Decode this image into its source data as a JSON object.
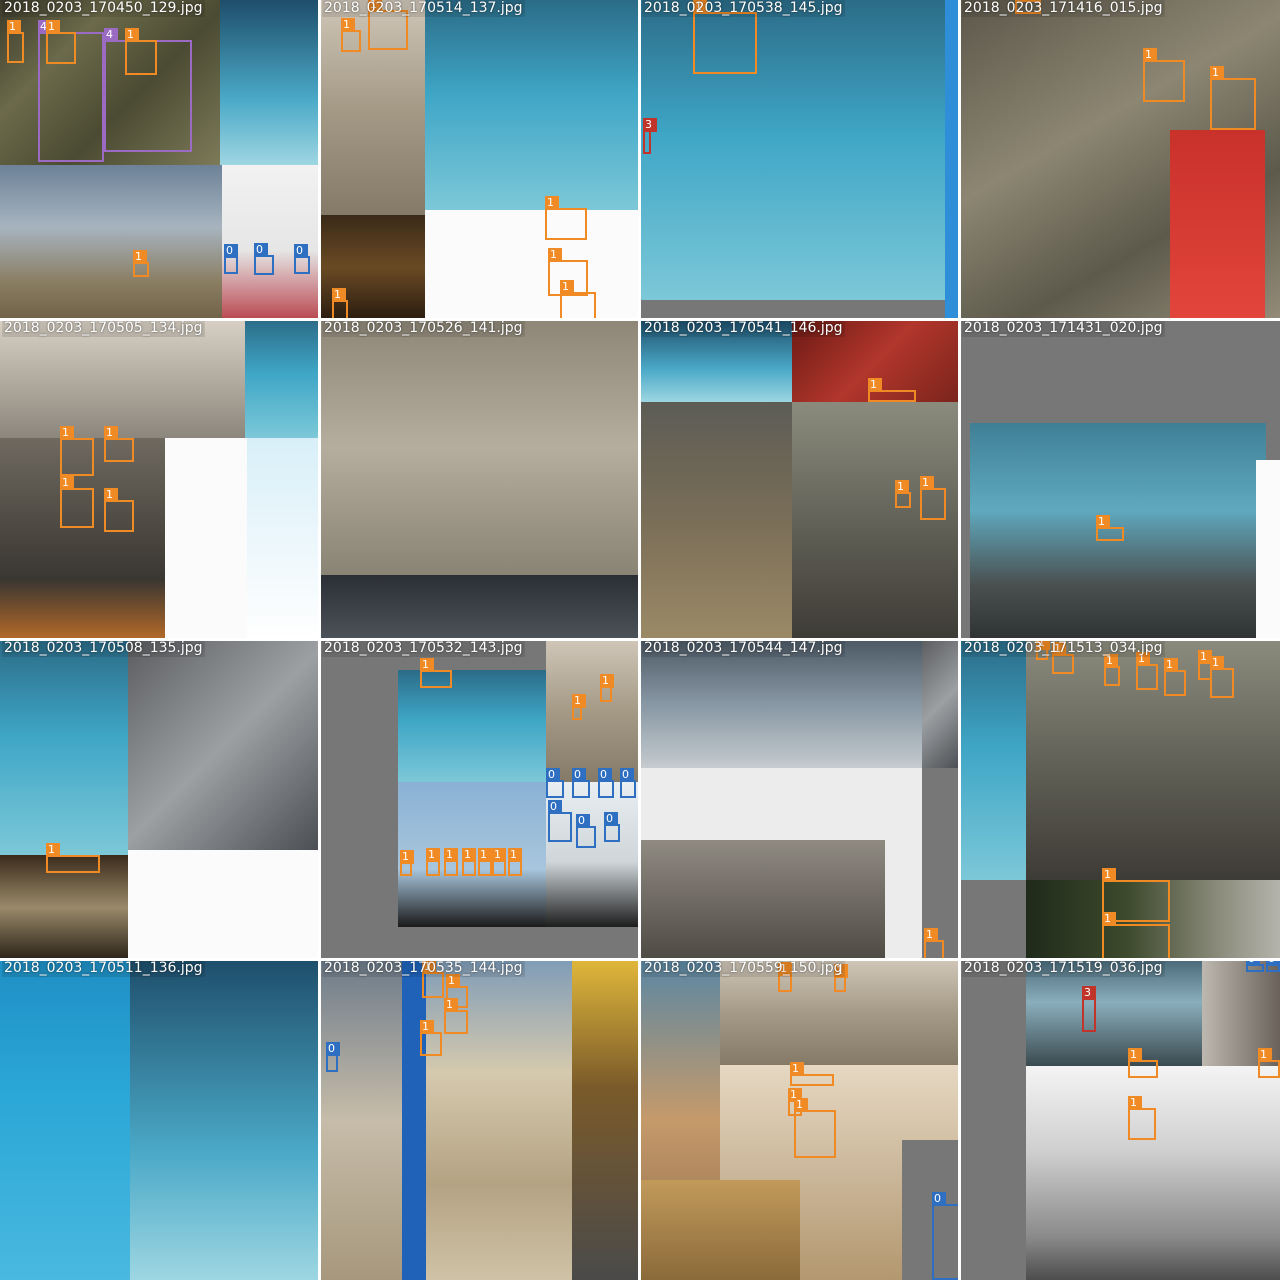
{
  "tiles": [
    {
      "filename": "2018_0203_170450_129.jpg",
      "row": 0,
      "col": 0
    },
    {
      "filename": "2018_0203_170514_137.jpg",
      "row": 0,
      "col": 1
    },
    {
      "filename": "2018_0203_170538_145.jpg",
      "row": 0,
      "col": 2
    },
    {
      "filename": "2018_0203_171416_015.jpg",
      "row": 0,
      "col": 3
    },
    {
      "filename": "2018_0203_170505_134.jpg",
      "row": 1,
      "col": 0
    },
    {
      "filename": "2018_0203_170526_141.jpg",
      "row": 1,
      "col": 1
    },
    {
      "filename": "2018_0203_170541_146.jpg",
      "row": 1,
      "col": 2
    },
    {
      "filename": "2018_0203_171431_020.jpg",
      "row": 1,
      "col": 3
    },
    {
      "filename": "2018_0203_170508_135.jpg",
      "row": 2,
      "col": 0
    },
    {
      "filename": "2018_0203_170532_143.jpg",
      "row": 2,
      "col": 1
    },
    {
      "filename": "2018_0203_170544_147.jpg",
      "row": 2,
      "col": 2
    },
    {
      "filename": "2018_0203_171513_034.jpg",
      "row": 2,
      "col": 3
    },
    {
      "filename": "2018_0203_170511_136.jpg",
      "row": 3,
      "col": 0
    },
    {
      "filename": "2018_0203_170535_144.jpg",
      "row": 3,
      "col": 1
    },
    {
      "filename": "2018_0203_170559_150.jpg",
      "row": 3,
      "col": 2
    },
    {
      "filename": "2018_0203_171519_036.jpg",
      "row": 3,
      "col": 3
    }
  ],
  "class_colors": {
    "0": "#2e6fc2",
    "1": "#f08a24",
    "3": "#c0342a",
    "4": "#9b6bc4"
  }
}
